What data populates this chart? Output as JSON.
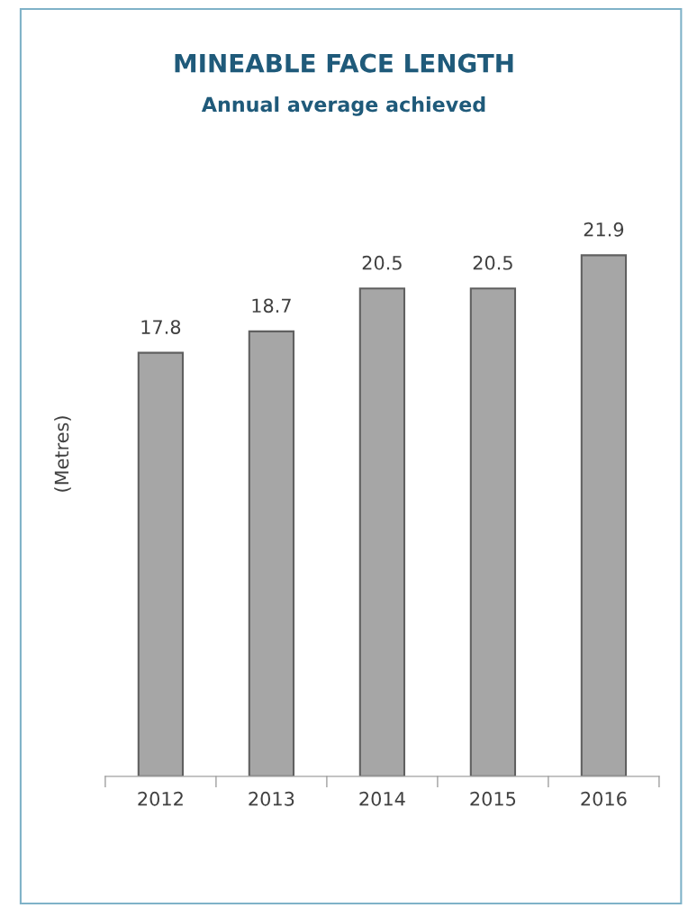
{
  "chart_data": {
    "type": "bar",
    "title": "MINEABLE FACE LENGTH",
    "subtitle": "Annual average achieved",
    "ylabel": "(Metres)",
    "categories": [
      "2012",
      "2013",
      "2014",
      "2015",
      "2016"
    ],
    "values": [
      17.8,
      18.7,
      20.5,
      20.5,
      21.9
    ],
    "color": "#a6a6a6",
    "data_labels": true,
    "grid": false,
    "legend": false
  }
}
